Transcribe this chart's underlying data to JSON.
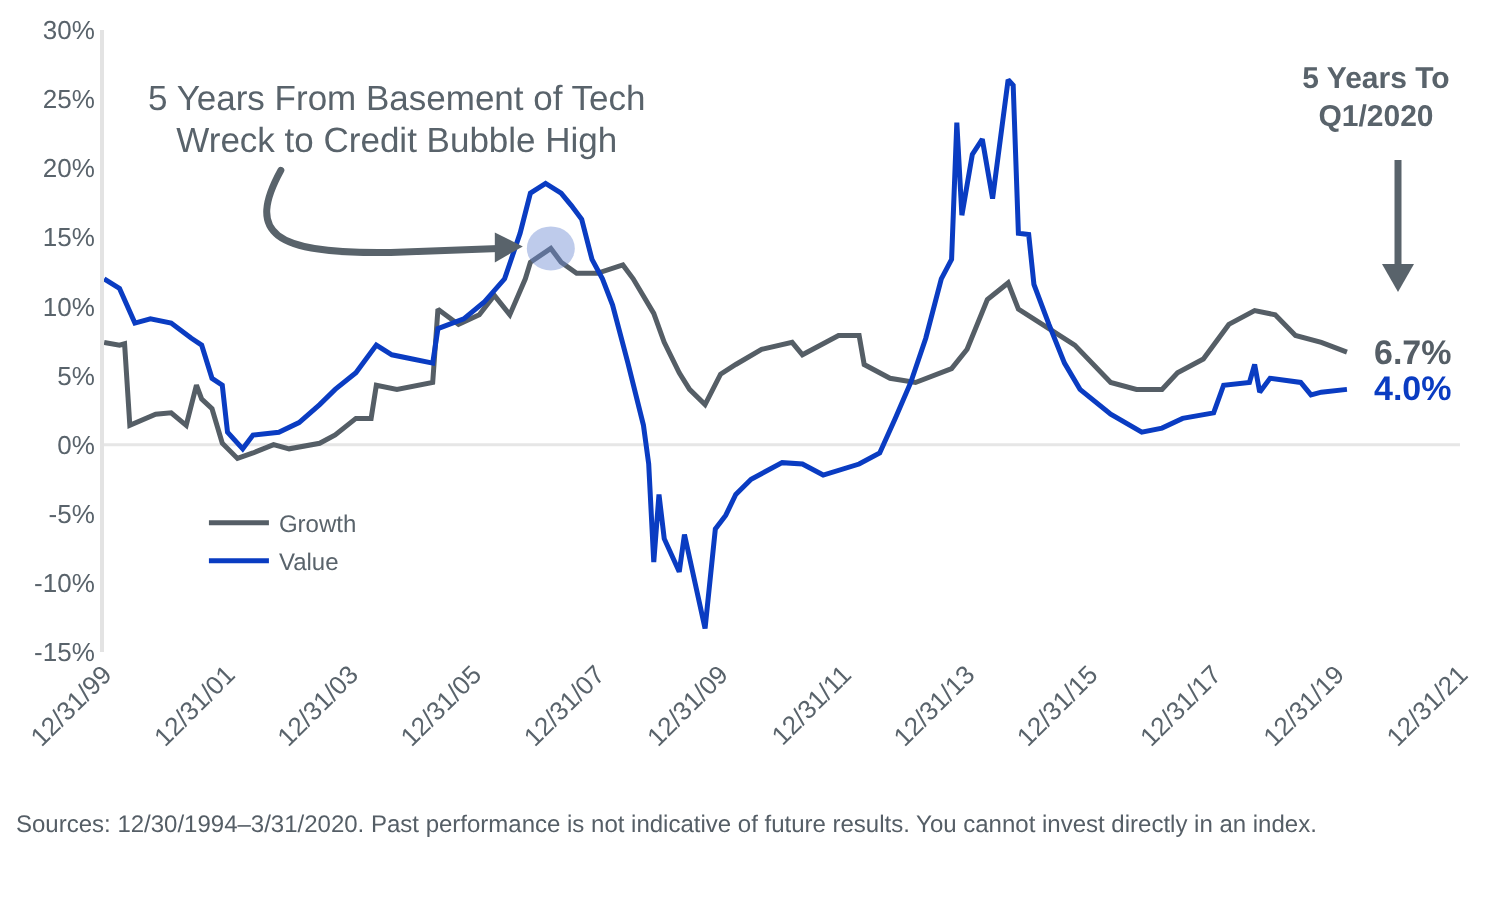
{
  "chart_data": {
    "type": "line",
    "annotations": [
      {
        "text": "5 Years From Basement of Tech Wreck to Credit Bubble High",
        "x": "2007-04",
        "y": 14.2
      },
      "5 Years To Q1/2020",
      {
        "text": "6.7%",
        "x": "2020-03",
        "y": 6.7
      },
      {
        "text": "4.0%",
        "x": "2020-03",
        "y": 4.0
      },
      "Sources: 12/30/1994–3/31/2020. Past performance is not indicative of future results. You cannot invest directly in an index."
    ],
    "series": [
      {
        "name": "Growth",
        "color": "#555e66",
        "x": [
          "2000-01",
          "2000-04",
          "2000-05",
          "2000-06",
          "2000-11",
          "2001-02",
          "2001-05",
          "2001-07",
          "2001-08",
          "2001-10",
          "2001-12",
          "2002-03",
          "2002-06",
          "2002-10",
          "2003-01",
          "2003-07",
          "2003-10",
          "2004-02",
          "2004-05",
          "2004-06",
          "2004-10",
          "2005-05",
          "2005-06",
          "2005-10",
          "2006-02",
          "2006-05",
          "2006-08",
          "2006-11",
          "2006-12",
          "2007-04",
          "2007-06",
          "2007-09",
          "2008-01",
          "2008-06",
          "2008-08",
          "2008-12",
          "2009-02",
          "2009-05",
          "2009-07",
          "2009-10",
          "2010-01",
          "2010-04",
          "2010-09",
          "2011-03",
          "2011-05",
          "2011-12",
          "2012-04",
          "2012-05",
          "2012-10",
          "2013-03",
          "2013-10",
          "2014-01",
          "2014-05",
          "2014-09",
          "2014-11",
          "2015-05",
          "2015-10",
          "2016-05",
          "2016-10",
          "2017-03",
          "2017-06",
          "2017-11",
          "2018-04",
          "2018-09",
          "2019-01",
          "2019-05",
          "2019-10",
          "2020-03"
        ],
        "values": [
          7.4,
          7.2,
          7.3,
          1.4,
          2.2,
          2.3,
          1.4,
          4.3,
          3.3,
          2.6,
          0.1,
          -1.0,
          -0.6,
          0,
          -0.3,
          0.1,
          0.7,
          1.9,
          1.9,
          4.3,
          4.0,
          4.5,
          9.8,
          8.7,
          9.4,
          10.8,
          9.4,
          12.0,
          13.2,
          14.2,
          13.2,
          12.4,
          12.4,
          13.0,
          12.0,
          9.5,
          7.4,
          5.2,
          4.0,
          2.9,
          5.1,
          5.8,
          6.9,
          7.4,
          6.5,
          7.9,
          7.9,
          5.8,
          4.8,
          4.5,
          5.5,
          6.9,
          10.5,
          11.7,
          9.8,
          8.4,
          7.2,
          4.5,
          4.0,
          4.0,
          5.2,
          6.2,
          8.7,
          9.7,
          9.4,
          7.9,
          7.4,
          6.7
        ]
      },
      {
        "name": "Value",
        "color": "#0a3cc2",
        "x": [
          "2000-01",
          "2000-04",
          "2000-07",
          "2000-10",
          "2001-02",
          "2001-06",
          "2001-08",
          "2001-10",
          "2001-12",
          "2002-01",
          "2002-04",
          "2002-06",
          "2002-11",
          "2003-03",
          "2003-07",
          "2003-10",
          "2004-02",
          "2004-06",
          "2004-09",
          "2005-01",
          "2005-05",
          "2005-06",
          "2005-11",
          "2006-03",
          "2006-07",
          "2006-10",
          "2006-12",
          "2007-03",
          "2007-06",
          "2007-08",
          "2007-10",
          "2007-12",
          "2008-02",
          "2008-04",
          "2008-07",
          "2008-10",
          "2008-11",
          "2008-12",
          "2009-01",
          "2009-02",
          "2009-05",
          "2009-06",
          "2009-10",
          "2009-12",
          "2010-02",
          "2010-04",
          "2010-07",
          "2011-01",
          "2011-05",
          "2011-09",
          "2012-04",
          "2012-08",
          "2012-11",
          "2013-02",
          "2013-05",
          "2013-08",
          "2013-10",
          "2013-11",
          "2013-12",
          "2014-02",
          "2014-04",
          "2014-06",
          "2014-09",
          "2014-10",
          "2014-11",
          "2015-01",
          "2015-02",
          "2015-05",
          "2015-08",
          "2015-11",
          "2016-05",
          "2016-11",
          "2017-03",
          "2017-07",
          "2018-01",
          "2018-03",
          "2018-08",
          "2018-09",
          "2018-10",
          "2018-12",
          "2019-06",
          "2019-08",
          "2019-10",
          "2020-03"
        ],
        "values": [
          12.0,
          11.3,
          8.8,
          9.1,
          8.8,
          7.7,
          7.2,
          4.8,
          4.3,
          0.9,
          -0.3,
          0.7,
          0.9,
          1.6,
          2.9,
          4.0,
          5.2,
          7.2,
          6.5,
          6.2,
          5.9,
          8.4,
          9.1,
          10.3,
          12.0,
          15.3,
          18.2,
          18.9,
          18.2,
          17.3,
          16.3,
          13.4,
          12.0,
          10.1,
          5.9,
          1.4,
          -1.4,
          -8.5,
          -3.6,
          -6.8,
          -9.2,
          -6.5,
          -13.3,
          -6.1,
          -5.1,
          -3.6,
          -2.5,
          -1.3,
          -1.4,
          -2.2,
          -1.4,
          -0.6,
          1.9,
          4.5,
          7.7,
          12.0,
          13.4,
          23.3,
          16.6,
          21.0,
          22.1,
          17.8,
          26.4,
          26.0,
          15.3,
          15.2,
          11.6,
          8.7,
          5.9,
          4.0,
          2.2,
          0.9,
          1.2,
          1.9,
          2.3,
          4.3,
          4.5,
          5.8,
          3.8,
          4.8,
          4.5,
          3.6,
          3.8,
          4.0
        ]
      }
    ],
    "xlim": [
      "1999-12-31",
      "2021-12-31"
    ],
    "xticks": [
      {
        "value": "1999-12-31",
        "label": "12/31/99"
      },
      {
        "value": "2001-12-31",
        "label": "12/31/01"
      },
      {
        "value": "2003-12-31",
        "label": "12/31/03"
      },
      {
        "value": "2005-12-31",
        "label": "12/31/05"
      },
      {
        "value": "2007-12-31",
        "label": "12/31/07"
      },
      {
        "value": "2009-12-31",
        "label": "12/31/09"
      },
      {
        "value": "2011-12-31",
        "label": "12/31/11"
      },
      {
        "value": "2013-12-31",
        "label": "12/31/13"
      },
      {
        "value": "2015-12-31",
        "label": "12/31/15"
      },
      {
        "value": "2017-12-31",
        "label": "12/31/17"
      },
      {
        "value": "2019-12-31",
        "label": "12/31/19"
      },
      {
        "value": "2021-12-31",
        "label": "12/31/21"
      }
    ],
    "ylim": [
      -15,
      30
    ],
    "yticks": [
      {
        "value": -15,
        "label": "-15%"
      },
      {
        "value": -10,
        "label": "-10%"
      },
      {
        "value": -5,
        "label": "-5%"
      },
      {
        "value": 0,
        "label": "0%"
      },
      {
        "value": 5,
        "label": "5%"
      },
      {
        "value": 10,
        "label": "10%"
      },
      {
        "value": 15,
        "label": "15%"
      },
      {
        "value": 20,
        "label": "20%"
      },
      {
        "value": 25,
        "label": "25%"
      },
      {
        "value": 30,
        "label": "30%"
      }
    ],
    "ref_lines": [
      {
        "axis": "y",
        "value": 0,
        "color": "#e6e6e6"
      }
    ],
    "grid": false,
    "legend": "bottom left",
    "marker": "none",
    "line_style": "solid"
  }
}
